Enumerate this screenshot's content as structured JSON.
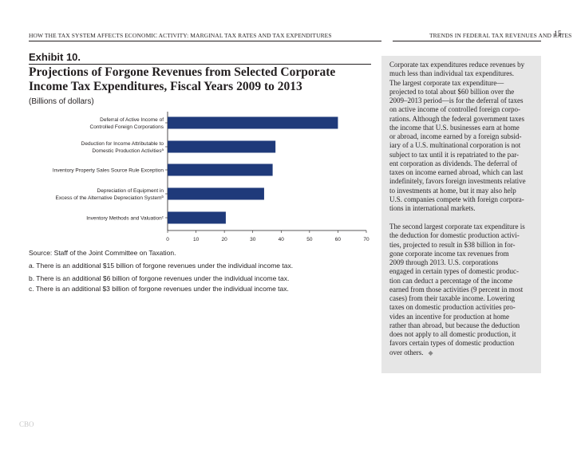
{
  "header": {
    "left": "HOW THE TAX SYSTEM AFFECTS ECONOMIC ACTIVITY: MARGINAL TAX RATES AND TAX EXPENDITURES",
    "right": "TRENDS IN FEDERAL TAX REVENUES AND RATES",
    "page_number": "15"
  },
  "exhibit": {
    "label": "Exhibit 10.",
    "title": "Projections of Forgone Revenues from Selected Corporate Income Tax Expenditures, Fiscal Years 2009 to 2013",
    "units": "(Billions of dollars)",
    "source": "Source:   Staff of the Joint Committee on Taxation.",
    "notes": [
      "a.  There is an additional $15 billion of forgone revenues under the individual income tax.",
      "b.  There is an additional $6 billion of forgone revenues under the individual income tax.",
      "c.  There is an additional $3 billion of forgone revenues under the individual income tax."
    ]
  },
  "chart_data": {
    "type": "bar",
    "orientation": "horizontal",
    "categories": [
      [
        "Deferral of Active Income of",
        "Controlled Foreign Corporations"
      ],
      [
        "Deduction for Income Attributable to",
        "Domestic Production Activities"
      ],
      [
        "Inventory Property Sales Source Rule Exception"
      ],
      [
        "Depreciation of Equipment in",
        "Excess of the Alternative Depreciation System"
      ],
      [
        "Inventory Methods and Valuation"
      ]
    ],
    "category_superscripts": [
      "",
      "a",
      "",
      "b",
      "c"
    ],
    "values": [
      60,
      38,
      37,
      34,
      20.5
    ],
    "xlim": [
      0,
      70
    ],
    "xticks": [
      "0",
      "10",
      "20",
      "30",
      "40",
      "50",
      "60",
      "70"
    ],
    "bar_color": "#1f3a7a",
    "grid": false
  },
  "sidebar": {
    "paragraphs": [
      [
        "Corporate tax expenditures reduce revenues by",
        "much less than individual tax expenditures.",
        "The largest corporate tax expenditure—",
        "projected to total about $60 billion over the",
        "2009–2013 period—is for the deferral of taxes",
        "on active income of controlled foreign corpo-",
        "rations. Although the federal government taxes",
        "the income that U.S. businesses earn at home",
        "or abroad, income earned by a foreign subsid-",
        "iary of a U.S. multinational corporation is not",
        "subject to tax until it is repatriated to the par-",
        "ent corporation as dividends. The deferral of",
        "taxes on income earned abroad, which can last",
        "indefinitely, favors foreign investments relative",
        "to investments at home, but it may also help",
        "U.S. companies compete with foreign corpora-",
        "tions in international markets."
      ],
      [
        "The second largest corporate tax expenditure is",
        "the deduction for domestic production activi-",
        "ties, projected to result in $38 billion in for-",
        "gone corporate income tax revenues from",
        "2009 through 2013. U.S. corporations",
        "engaged in certain types of domestic produc-",
        "tion can deduct a percentage of the income",
        "earned from those activities (9 percent in most",
        "cases) from their taxable income. Lowering",
        "taxes on domestic production activities pro-",
        "vides an incentive for production at home",
        "rather than abroad, but because the deduction",
        "does not apply to all domestic production, it",
        "favors certain types of domestic production",
        "over others."
      ]
    ],
    "end_mark": "◆"
  },
  "footer": {
    "logo": "CBO"
  }
}
